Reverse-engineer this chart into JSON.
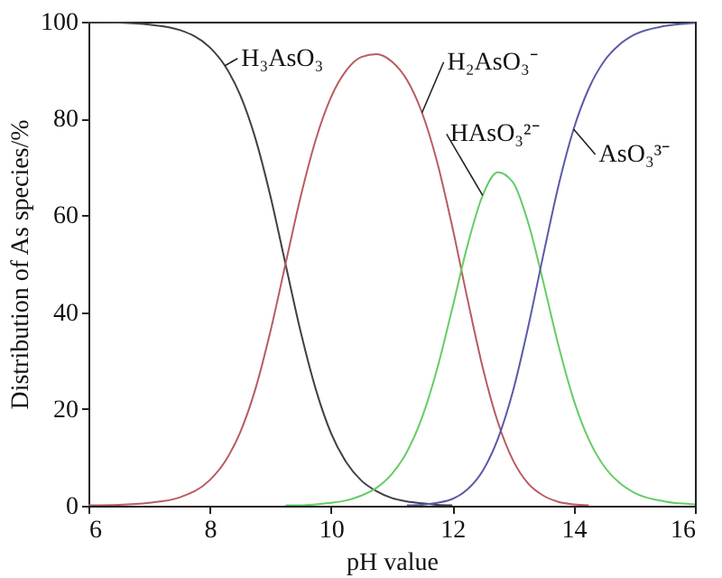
{
  "chart_data": {
    "type": "line",
    "xlabel": "pH value",
    "ylabel": "Distribution of As species/%",
    "x": [
      6,
      6.5,
      7,
      7.5,
      8,
      8.25,
      8.5,
      8.75,
      9,
      9.25,
      9.5,
      9.75,
      10,
      10.25,
      10.5,
      10.75,
      11,
      11.25,
      11.5,
      11.75,
      12,
      12.25,
      12.5,
      12.75,
      13,
      13.25,
      13.5,
      13.75,
      14,
      14.25,
      14.5,
      14.75,
      15,
      15.5,
      16
    ],
    "series": [
      {
        "name": "H₃AsO₃",
        "color": "#404048",
        "values": [
          99.9,
          99.8,
          99.4,
          98.3,
          94.7,
          90.9,
          84.9,
          76.0,
          64.0,
          49.9,
          35.9,
          24.0,
          15.0,
          9.0,
          5.2,
          3.0,
          1.6,
          0.9,
          0.5,
          0.2,
          0.1,
          null,
          null,
          null,
          null,
          null,
          null,
          null,
          null,
          null,
          null,
          null,
          null,
          null,
          null
        ]
      },
      {
        "name": "H₂AsO₃⁻",
        "color": "#b85c60",
        "values": [
          0.1,
          0.2,
          0.6,
          1.7,
          5.3,
          9.1,
          15.1,
          24.0,
          36.0,
          50.0,
          63.9,
          75.7,
          84.4,
          89.9,
          92.7,
          93.3,
          91.8,
          88.0,
          81.2,
          71.0,
          57.6,
          42.7,
          28.6,
          17.3,
          9.4,
          4.6,
          2.1,
          0.8,
          0.3,
          0.1,
          null,
          null,
          null,
          null,
          null
        ]
      },
      {
        "name": "HAsO₃²⁻",
        "color": "#66cc66",
        "values": [
          null,
          null,
          null,
          null,
          null,
          null,
          null,
          null,
          null,
          0.1,
          0.1,
          0.3,
          0.6,
          1.1,
          2.1,
          3.7,
          6.5,
          11.1,
          18.2,
          28.3,
          40.8,
          53.8,
          64.1,
          68.9,
          66.8,
          58.5,
          46.2,
          33.1,
          21.9,
          13.7,
          8.2,
          4.8,
          2.7,
          0.9,
          0.3
        ]
      },
      {
        "name": "AsO₃³⁻",
        "color": "#5a5aa8",
        "values": [
          null,
          null,
          null,
          null,
          null,
          null,
          null,
          null,
          null,
          null,
          null,
          null,
          null,
          null,
          null,
          null,
          null,
          0.1,
          0.2,
          0.6,
          1.4,
          3.4,
          7.2,
          13.8,
          23.7,
          36.9,
          51.8,
          66.1,
          77.8,
          86.2,
          91.8,
          95.2,
          97.3,
          99.1,
          99.7
        ]
      }
    ],
    "xlim": [
      6,
      16
    ],
    "xticks": [
      6,
      8,
      10,
      12,
      14,
      16
    ],
    "ylim": [
      0,
      100
    ],
    "yticks": [
      0,
      20,
      40,
      60,
      80,
      100
    ],
    "grid": false,
    "legend": false
  }
}
